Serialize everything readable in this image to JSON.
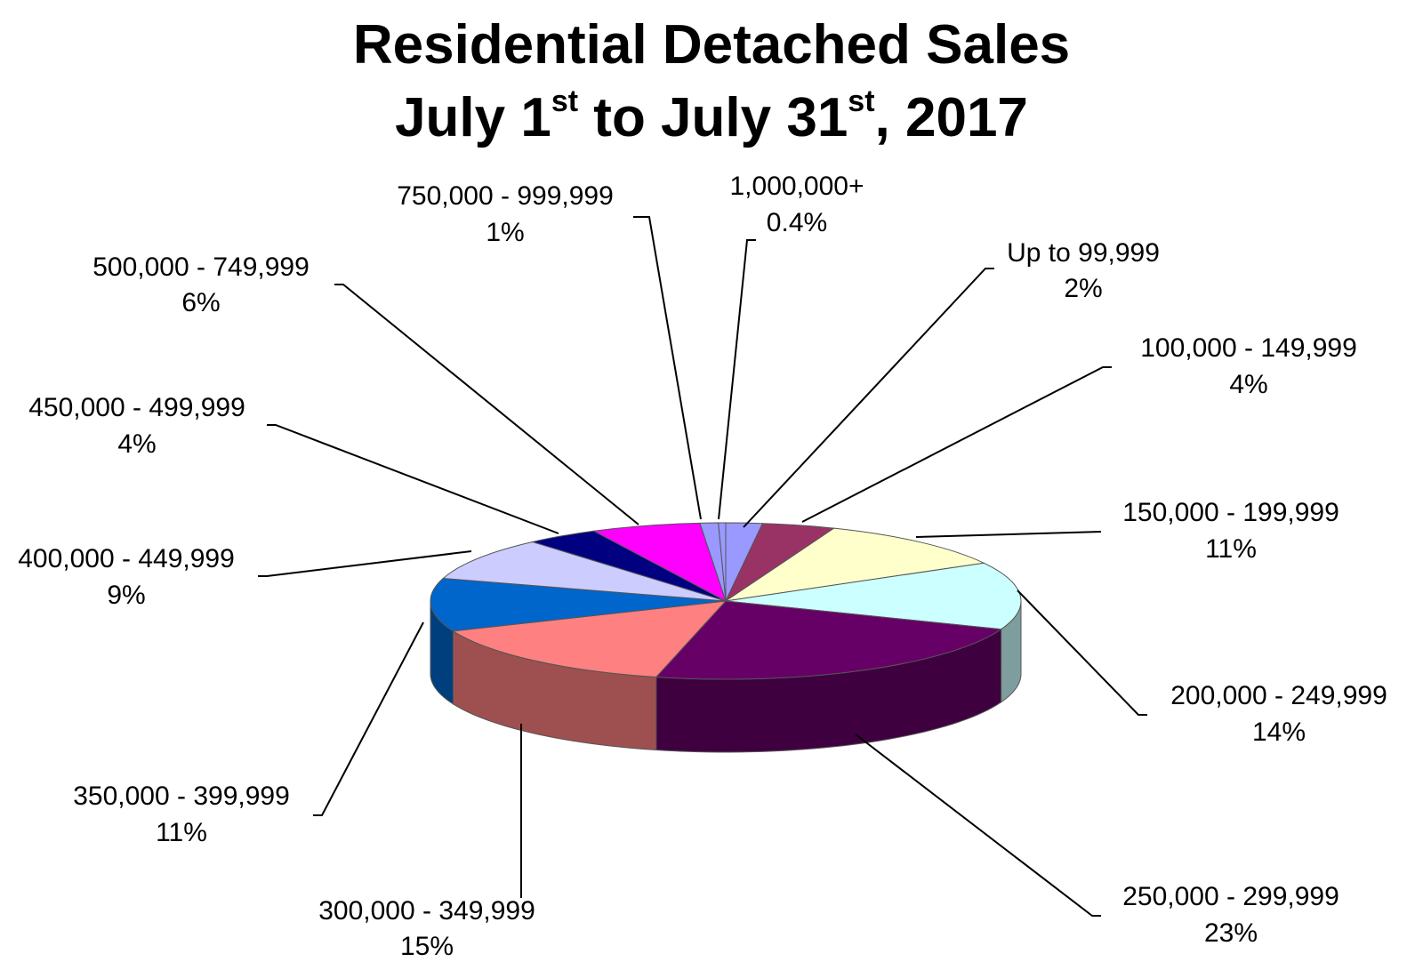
{
  "chart_data": {
    "type": "pie",
    "title_line1": "Residential Detached Sales",
    "title_line2_pre": "July 1",
    "title_line2_sup1": "st",
    "title_line2_mid": " to July 31",
    "title_line2_sup2": "st",
    "title_line2_post": ", 2017",
    "categories": [
      "Up to 99,999",
      "100,000 - 149,999",
      "150,000 - 199,999",
      "200,000 - 249,999",
      "250,000 - 299,999",
      "300,000 - 349,999",
      "350,000 - 399,999",
      "400,000 - 449,999",
      "450,000 - 499,999",
      "500,000 - 749,999",
      "750,000 - 999,999",
      "1,000,000+"
    ],
    "values": [
      2,
      4,
      11,
      14,
      23,
      15,
      11,
      9,
      4,
      6,
      1,
      0.4
    ],
    "value_labels": [
      "2%",
      "4%",
      "11%",
      "14%",
      "23%",
      "15%",
      "11%",
      "9%",
      "4%",
      "6%",
      "1%",
      "0.4%"
    ],
    "colors": [
      "#9999ff",
      "#993366",
      "#ffffcc",
      "#ccffff",
      "#660066",
      "#ff8080",
      "#0066cc",
      "#ccccff",
      "#000080",
      "#ff00ff",
      "#9999ff",
      "#9999ff"
    ],
    "style": "3d-perspective",
    "legend": "none (labels with leader lines)"
  }
}
